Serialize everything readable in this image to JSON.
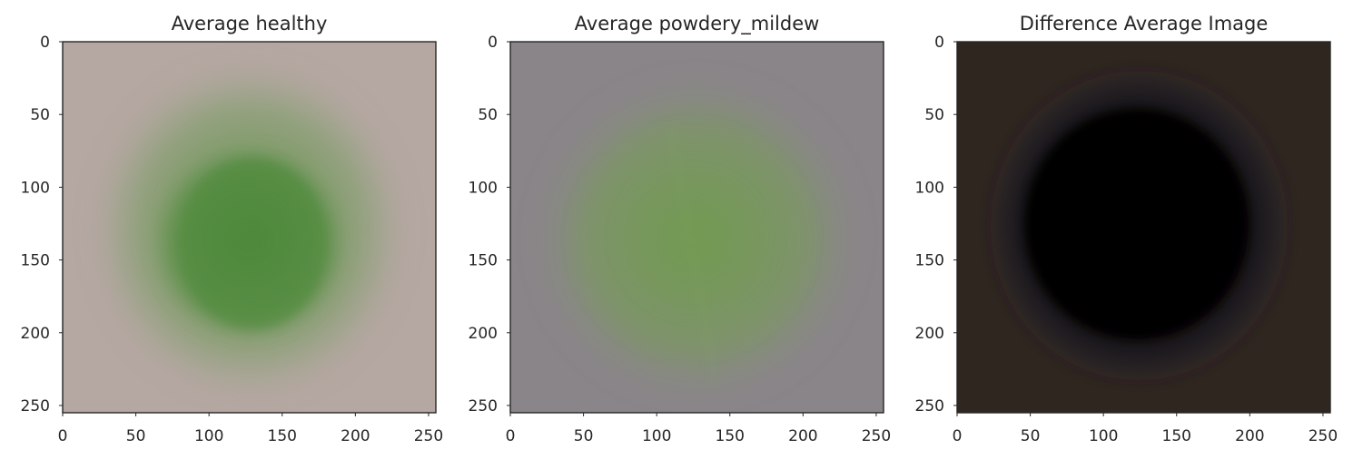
{
  "figure": {
    "panels": [
      {
        "title": "Average healthy",
        "kind": "healthy",
        "background": "#b5a7a2",
        "leaf_color": "#4f8a3a",
        "xticks": [
          "0",
          "50",
          "100",
          "150",
          "200",
          "250"
        ],
        "yticks": [
          "0",
          "50",
          "100",
          "150",
          "200",
          "250"
        ]
      },
      {
        "title": "Average powdery_mildew",
        "kind": "mildew",
        "background": "#8a8589",
        "leaf_color": "#6f9a50",
        "xticks": [
          "0",
          "50",
          "100",
          "150",
          "200",
          "250"
        ],
        "yticks": [
          "0",
          "50",
          "100",
          "150",
          "200",
          "250"
        ]
      },
      {
        "title": "Difference Average Image",
        "kind": "difference",
        "background": "#2f2620",
        "leaf_color": "#000000",
        "xticks": [
          "0",
          "50",
          "100",
          "150",
          "200",
          "250"
        ],
        "yticks": [
          "0",
          "50",
          "100",
          "150",
          "200",
          "250"
        ]
      }
    ]
  }
}
